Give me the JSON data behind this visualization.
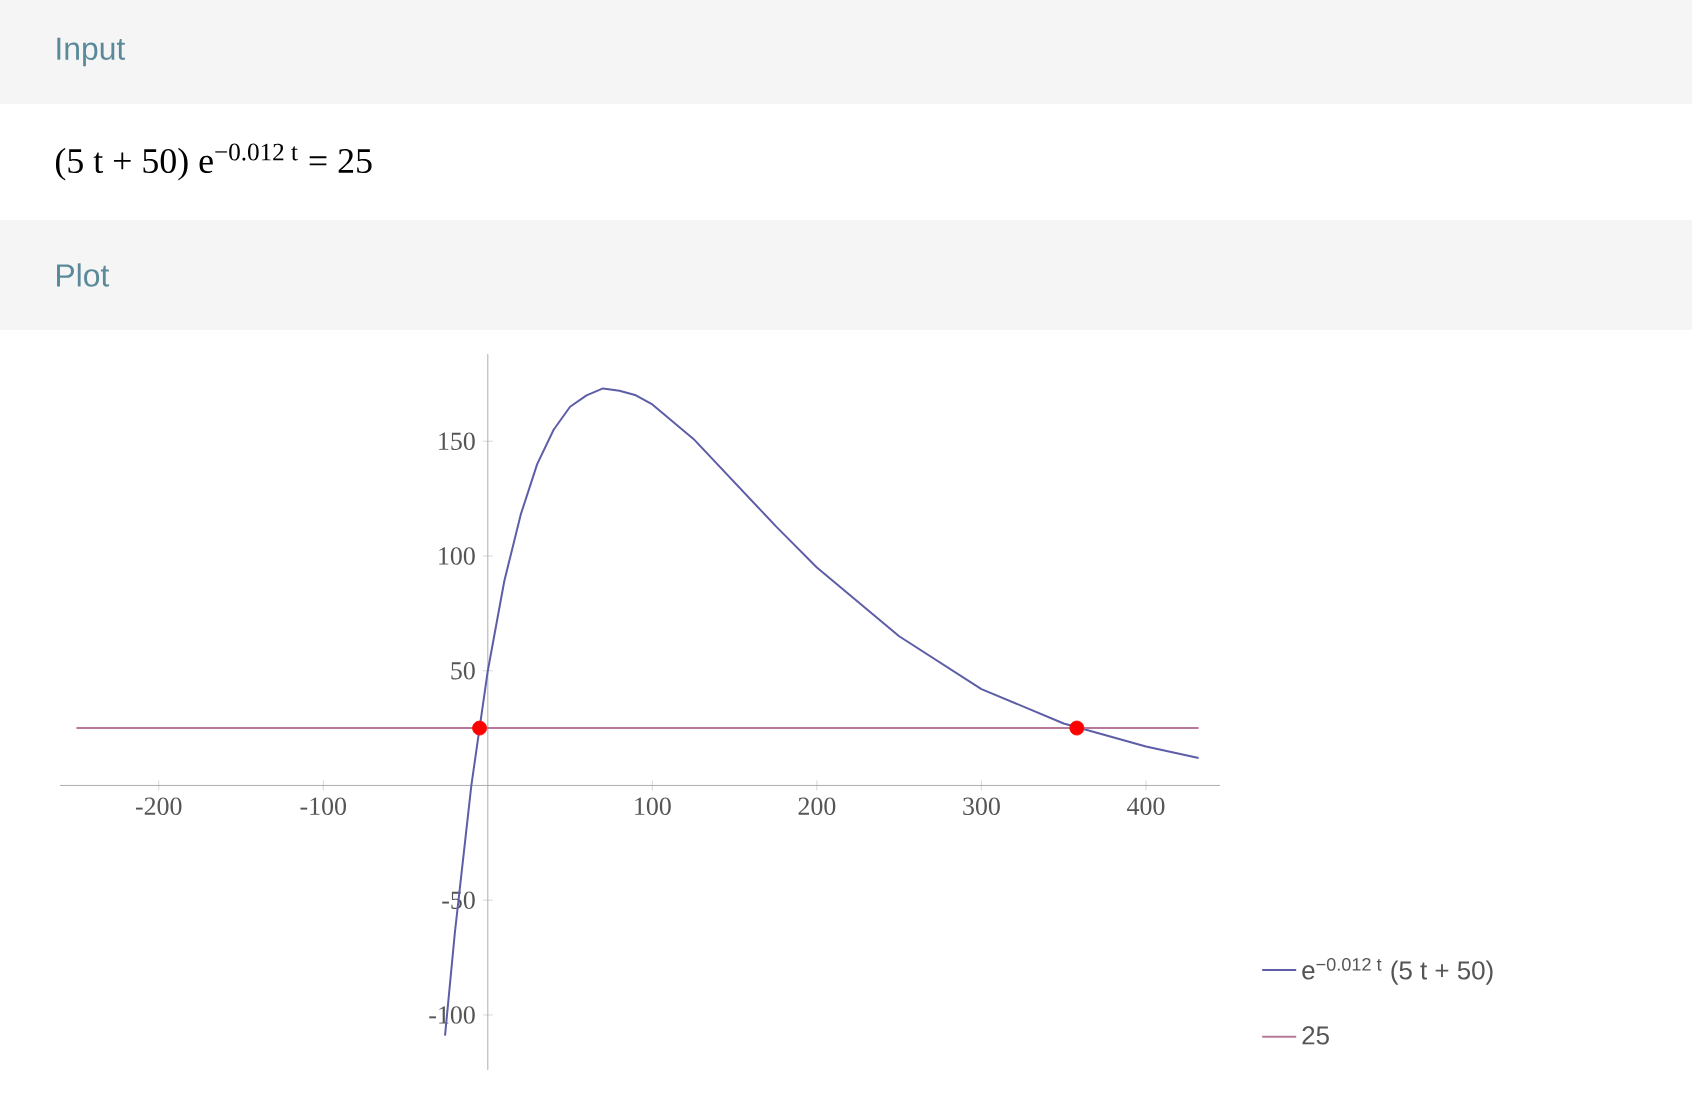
{
  "chart_data": {
    "type": "line",
    "annotations": [
      "Input",
      "(5 t + 50) e$^{−0.012 t}$ = 25",
      "Plot"
    ],
    "series": [
      {
        "name": "e$^{−0.012 t}$ (5 t + 50)",
        "color": "#5d5da8",
        "type": "line",
        "x": [
          -26,
          -20,
          -10,
          0,
          10,
          20,
          30,
          40,
          50,
          60,
          70,
          80,
          90,
          100,
          125,
          150,
          175,
          200,
          250,
          300,
          350,
          400,
          432
        ],
        "values": [
          -109,
          -64,
          0,
          50,
          89,
          118,
          140,
          155,
          165,
          170,
          173,
          172,
          170,
          166,
          151,
          132,
          113,
          95,
          65,
          42,
          27,
          17,
          12
        ]
      },
      {
        "name": "25",
        "color": "#b87898",
        "type": "line",
        "x": [
          -250,
          432
        ],
        "values": [
          25,
          25
        ]
      },
      {
        "color": "#ff0000",
        "type": "scatter",
        "marker": "circle",
        "x": [
          -5,
          358
        ],
        "values": [
          25,
          25
        ]
      }
    ],
    "xlim": [
      -260,
      445
    ],
    "ylim": [
      -124,
      188
    ],
    "xticks": [
      -200,
      -100,
      100,
      200,
      300,
      400
    ],
    "yticks": [
      -100,
      -50,
      50,
      100,
      150
    ],
    "line_style": "solid",
    "marker": "none",
    "legend": "bottom right"
  }
}
